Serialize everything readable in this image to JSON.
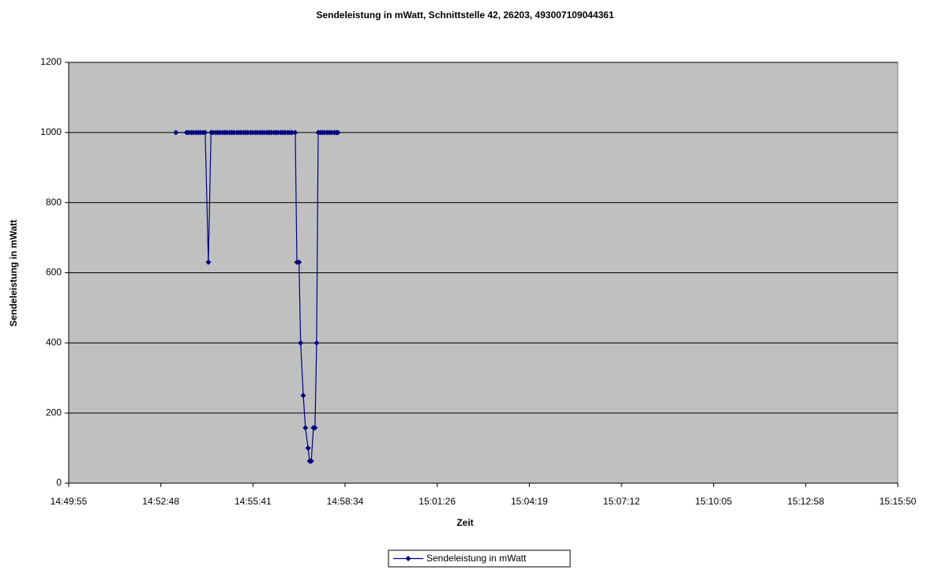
{
  "chart_data": {
    "type": "line",
    "title": "Sendeleistung in mWatt, Schnittstelle 42, 26203, 493007109044361",
    "x_label": "Zeit",
    "y_label": "Sendeleistung in mWatt",
    "x": [
      53596,
      53616,
      53620,
      53625,
      53629,
      53634,
      53638,
      53642,
      53647,
      53651,
      53657,
      53662,
      53666,
      53671,
      53675,
      53679,
      53684,
      53688,
      53692,
      53697,
      53701,
      53705,
      53710,
      53714,
      53718,
      53723,
      53727,
      53731,
      53736,
      53740,
      53745,
      53749,
      53754,
      53758,
      53762,
      53767,
      53771,
      53775,
      53780,
      53784,
      53788,
      53793,
      53797,
      53801,
      53806,
      53810,
      53814,
      53820,
      53823,
      53827,
      53830,
      53835,
      53839,
      53844,
      53847,
      53850,
      53854,
      53857,
      53860,
      53863,
      53867,
      53871,
      53875,
      53880,
      53884,
      53888,
      53893,
      53897,
      53900
    ],
    "series": [
      {
        "name": "Sendeleistung in mWatt",
        "color": "#000080",
        "values": [
          1000,
          1000,
          1000,
          1000,
          1000,
          1000,
          1000,
          1000,
          1000,
          1000,
          630,
          1000,
          1000,
          1000,
          1000,
          1000,
          1000,
          1000,
          1000,
          1000,
          1000,
          1000,
          1000,
          1000,
          1000,
          1000,
          1000,
          1000,
          1000,
          1000,
          1000,
          1000,
          1000,
          1000,
          1000,
          1000,
          1000,
          1000,
          1000,
          1000,
          1000,
          1000,
          1000,
          1000,
          1000,
          1000,
          1000,
          1000,
          630,
          630,
          400,
          250,
          158,
          100,
          63,
          63,
          158,
          158,
          400,
          1000,
          1000,
          1000,
          1000,
          1000,
          1000,
          1000,
          1000,
          1000,
          1000
        ]
      }
    ],
    "xlim": [
      53395,
      54950.2
    ],
    "xticks": [
      {
        "value": 53395,
        "label": "14:49:55"
      },
      {
        "value": 53567.8,
        "label": "14:52:48"
      },
      {
        "value": 53740.6,
        "label": "14:55:41"
      },
      {
        "value": 53913.4,
        "label": "14:58:34"
      },
      {
        "value": 54086.2,
        "label": "15:01:26"
      },
      {
        "value": 54259,
        "label": "15:04:19"
      },
      {
        "value": 54431.8,
        "label": "15:07:12"
      },
      {
        "value": 54604.6,
        "label": "15:10:05"
      },
      {
        "value": 54777.4,
        "label": "15:12:58"
      },
      {
        "value": 54950.2,
        "label": "15:15:50"
      }
    ],
    "ylim": [
      0,
      1200
    ],
    "yticks": [
      0,
      200,
      400,
      600,
      800,
      1000,
      1200
    ],
    "grid": true,
    "plot_background": "#c0c0c0",
    "legend": "bottom"
  }
}
